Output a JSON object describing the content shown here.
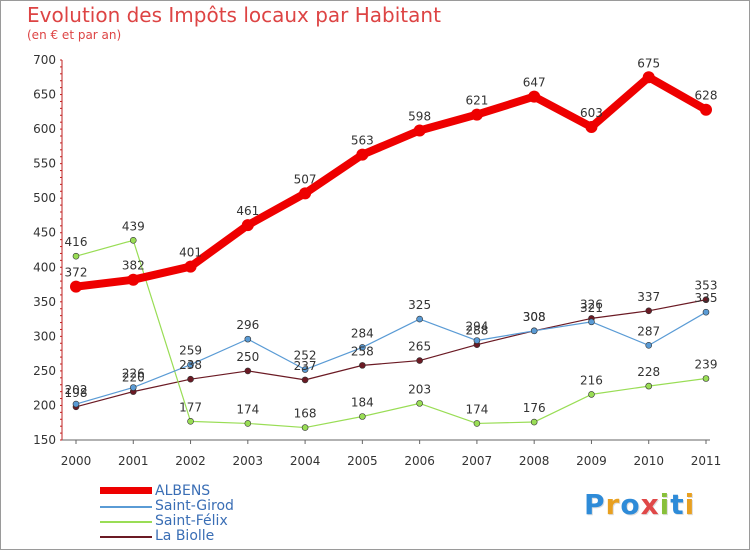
{
  "title": "Evolution des Impôts locaux par Habitant",
  "subtitle": "(en € et par an)",
  "logo_text": "Proxiti",
  "colors": {
    "title": "#dd4444",
    "albens": "#ee0000",
    "saint_girod": "#5a9bd5",
    "saint_felix": "#99dd55",
    "la_biolle": "#6b1a24",
    "legend_text": "#3a6eb5"
  },
  "chart_data": {
    "type": "line",
    "title": "Evolution des Impôts locaux par Habitant",
    "subtitle": "(en € et par an)",
    "xlabel": "",
    "ylabel": "",
    "ylim": [
      150,
      700
    ],
    "yticks": [
      150,
      200,
      250,
      300,
      350,
      400,
      450,
      500,
      550,
      600,
      650,
      700
    ],
    "grid": false,
    "legend_position": "bottom-left",
    "categories": [
      "2000",
      "2001",
      "2002",
      "2003",
      "2004",
      "2005",
      "2006",
      "2007",
      "2008",
      "2009",
      "2010",
      "2011"
    ],
    "series": [
      {
        "name": "ALBENS",
        "color": "#ee0000",
        "values": [
          372,
          382,
          401,
          461,
          507,
          563,
          598,
          621,
          647,
          603,
          675,
          628
        ],
        "labels": [
          "372",
          "382",
          "401",
          "461",
          "507",
          "563",
          "598",
          "621",
          "647",
          "603",
          "675",
          "628"
        ]
      },
      {
        "name": "Saint-Girod",
        "color": "#5a9bd5",
        "values": [
          202,
          226,
          259,
          296,
          252,
          284,
          325,
          294,
          308,
          321,
          287,
          335
        ],
        "labels": [
          "202",
          "226",
          "259",
          "296",
          "252",
          "284",
          "325",
          "294",
          "308",
          "321",
          "287",
          "335"
        ]
      },
      {
        "name": "Saint-Félix",
        "color": "#99dd55",
        "values": [
          416,
          439,
          177,
          174,
          168,
          184,
          203,
          174,
          176,
          216,
          228,
          239
        ],
        "labels": [
          "416",
          "439",
          "177",
          "174",
          "168",
          "184",
          "203",
          "174",
          "176",
          "216",
          "228",
          "239"
        ]
      },
      {
        "name": "La Biolle",
        "color": "#6b1a24",
        "values": [
          198,
          220,
          238,
          250,
          237,
          258,
          265,
          288,
          308,
          326,
          337,
          353
        ],
        "labels": [
          "198",
          "220",
          "238",
          "250",
          "237",
          "258",
          "265",
          "288",
          "308",
          "326",
          "337",
          "353"
        ]
      }
    ]
  }
}
